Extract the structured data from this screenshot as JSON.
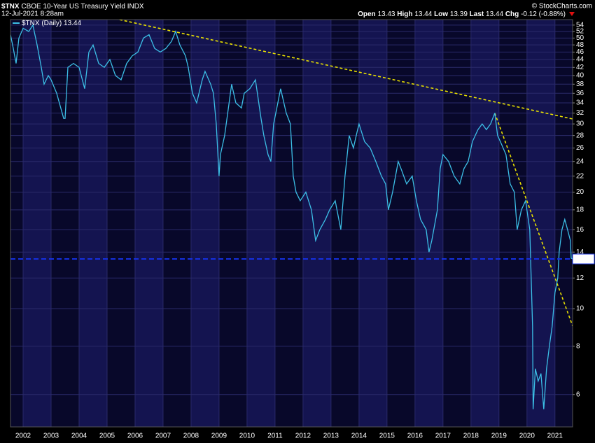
{
  "chart_data": {
    "type": "line",
    "symbol": "$TNX",
    "title": "CBOE 10-Year US Treasury Yield INDX",
    "timestamp": "12-Jul-2021 8:28am",
    "source": "© StockCharts.com",
    "quote": [
      {
        "label": "Open",
        "value": 13.43
      },
      {
        "label": "High",
        "value": 13.44
      },
      {
        "label": "Low",
        "value": 13.39
      },
      {
        "label": "Last",
        "value": 13.44
      },
      {
        "label": "Chg",
        "value": -0.12
      }
    ],
    "change_pct": {
      "value": -0.88,
      "label": "(-0.88%)"
    },
    "log_scale": true,
    "grid": true,
    "last_value_line": true,
    "xlim": [
      2001.55,
      2021.63
    ],
    "xticks": [
      2002,
      2003,
      2004,
      2005,
      2006,
      2007,
      2008,
      2009,
      2010,
      2011,
      2012,
      2013,
      2014,
      2015,
      2016,
      2017,
      2018,
      2019,
      2020,
      2021
    ],
    "ylim": [
      4.95,
      55.8
    ],
    "yticks": [
      6,
      8,
      10,
      12,
      14,
      16,
      18,
      20,
      22,
      24,
      26,
      28,
      30,
      32,
      34,
      36,
      38,
      40,
      42,
      44,
      46,
      48,
      50,
      52,
      54
    ],
    "series": [
      {
        "name": "$TNX (Daily)",
        "color": "#3cbfe6",
        "x": [
          2001.55,
          2001.65,
          2001.75,
          2001.85,
          2002.0,
          2002.2,
          2002.35,
          2002.5,
          2002.65,
          2002.75,
          2002.9,
          2003.0,
          2003.2,
          2003.45,
          2003.5,
          2003.6,
          2003.8,
          2004.0,
          2004.2,
          2004.35,
          2004.5,
          2004.7,
          2004.9,
          2005.1,
          2005.3,
          2005.5,
          2005.7,
          2005.9,
          2006.1,
          2006.3,
          2006.5,
          2006.7,
          2006.9,
          2007.1,
          2007.3,
          2007.45,
          2007.6,
          2007.8,
          2007.9,
          2008.05,
          2008.2,
          2008.4,
          2008.5,
          2008.7,
          2008.8,
          2008.9,
          2009.0,
          2009.05,
          2009.2,
          2009.45,
          2009.6,
          2009.8,
          2009.9,
          2010.1,
          2010.3,
          2010.5,
          2010.6,
          2010.75,
          2010.85,
          2010.95,
          2011.1,
          2011.2,
          2011.4,
          2011.55,
          2011.65,
          2011.75,
          2011.9,
          2012.1,
          2012.3,
          2012.45,
          2012.6,
          2012.8,
          2012.95,
          2013.15,
          2013.35,
          2013.5,
          2013.65,
          2013.8,
          2013.95,
          2014.0,
          2014.2,
          2014.4,
          2014.6,
          2014.8,
          2014.95,
          2015.05,
          2015.2,
          2015.4,
          2015.5,
          2015.7,
          2015.9,
          2016.05,
          2016.2,
          2016.4,
          2016.5,
          2016.6,
          2016.8,
          2016.9,
          2017.0,
          2017.2,
          2017.4,
          2017.6,
          2017.75,
          2017.9,
          2018.05,
          2018.25,
          2018.4,
          2018.55,
          2018.7,
          2018.85,
          2018.95,
          2019.05,
          2019.25,
          2019.4,
          2019.55,
          2019.65,
          2019.8,
          2019.95,
          2020.1,
          2020.2,
          2020.22,
          2020.3,
          2020.4,
          2020.5,
          2020.6,
          2020.7,
          2020.8,
          2020.9,
          2021.0,
          2021.1,
          2021.15,
          2021.25,
          2021.35,
          2021.45,
          2021.55,
          2021.58,
          2021.63
        ],
        "values": [
          51,
          47,
          43,
          50,
          53,
          52,
          54,
          48,
          42,
          38,
          40,
          39,
          36,
          31,
          31,
          42,
          43,
          42,
          37,
          46,
          48,
          43,
          42,
          44,
          40,
          39,
          43,
          45,
          46,
          50,
          51,
          47,
          46,
          47,
          49,
          52,
          48,
          45,
          42,
          36,
          34,
          39,
          41,
          38,
          36,
          30,
          22,
          25,
          28,
          38,
          34,
          33,
          36,
          37,
          39,
          31,
          28,
          25,
          24,
          30,
          34,
          37,
          32,
          30,
          22,
          20,
          19,
          20,
          18,
          15,
          16,
          17,
          18,
          19,
          16,
          22,
          28,
          26,
          29,
          30,
          27,
          26,
          24,
          22,
          21,
          18,
          20,
          24,
          23,
          21,
          22,
          19,
          17,
          16,
          14,
          15,
          18,
          23,
          25,
          24,
          22,
          21,
          23,
          24,
          27,
          29,
          30,
          29,
          30,
          32,
          28,
          27,
          25,
          21,
          20,
          16,
          18,
          19,
          16,
          9,
          5.5,
          7,
          6.5,
          6.8,
          5.5,
          7,
          8,
          9,
          11,
          12,
          14,
          16,
          17,
          16,
          15,
          13.5,
          13.44
        ]
      }
    ],
    "trendlines": [
      {
        "color": "#e8e000",
        "x": [
          2002.2,
          2007.48,
          2021.63
        ],
        "values": [
          62.8,
          51.8,
          30.9
        ]
      },
      {
        "color": "#e8e000",
        "x": [
          2018.85,
          2021.63
        ],
        "values": [
          32,
          9.03
        ]
      }
    ]
  }
}
